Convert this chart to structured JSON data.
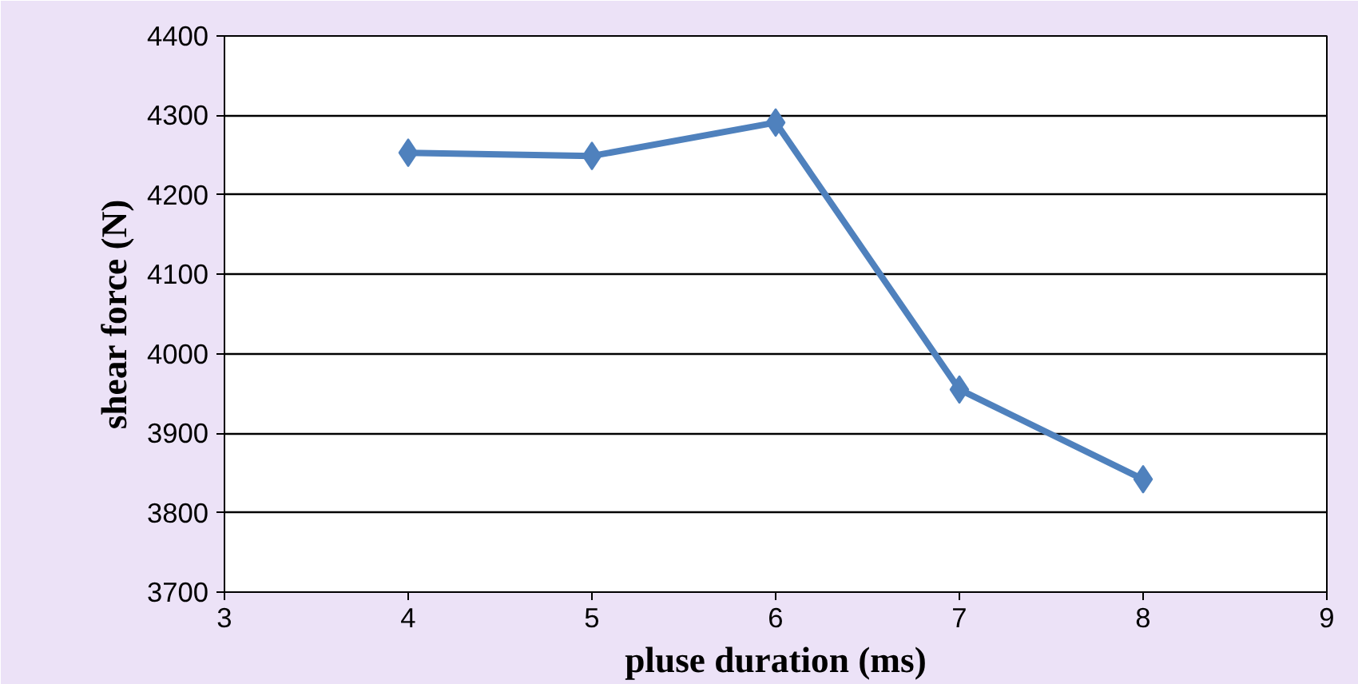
{
  "chart_data": {
    "type": "line",
    "xlabel": "pluse duration (ms)",
    "ylabel": "shear force (N)",
    "x": [
      4,
      5,
      6,
      7,
      8
    ],
    "series": [
      {
        "color": "#4f81bd",
        "values": [
          4253,
          4249,
          4291,
          3955,
          3842
        ]
      }
    ],
    "xlim": [
      3,
      9
    ],
    "xticks": [
      3,
      4,
      5,
      6,
      7,
      8,
      9
    ],
    "ylim": [
      3700,
      4400
    ],
    "yticks": [
      3700,
      3800,
      3900,
      4000,
      4100,
      4200,
      4300,
      4400
    ],
    "grid": "y",
    "marker": "diamond",
    "line_style": "solid"
  }
}
